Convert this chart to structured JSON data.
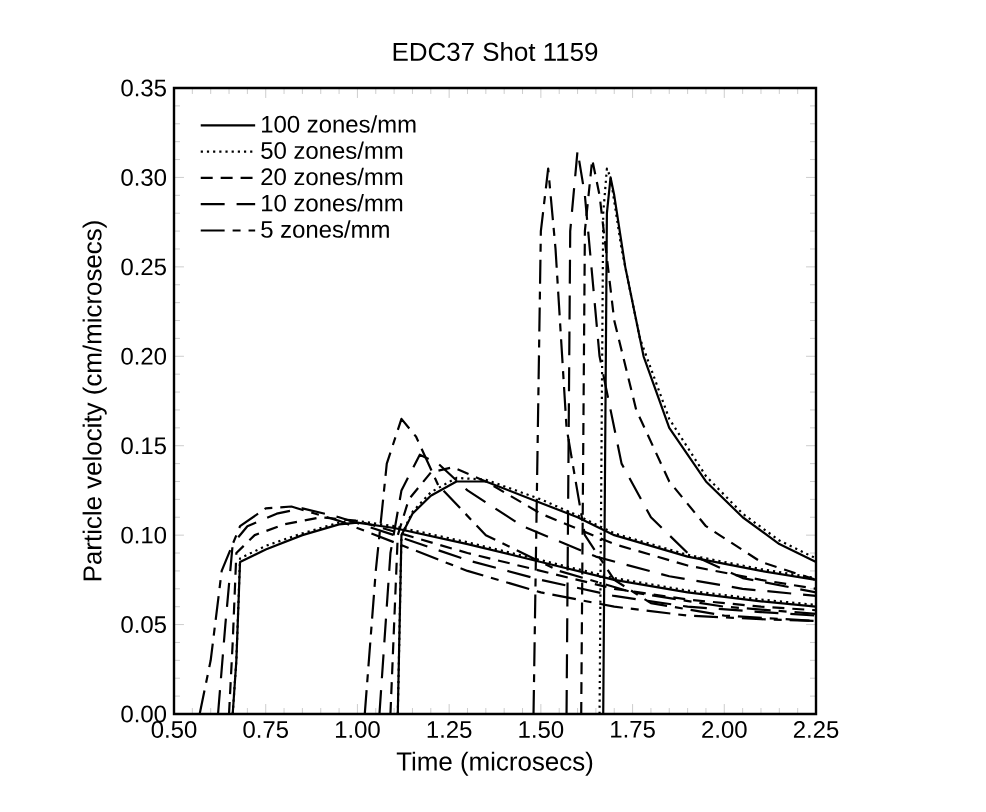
{
  "chart_data": {
    "type": "line",
    "title": "EDC37  Shot 1159",
    "xlabel": "Time (microsecs)",
    "ylabel": "Particle velocity (cm/microsecs)",
    "xlim": [
      0.5,
      2.25
    ],
    "ylim": [
      0,
      0.35
    ],
    "xticks": [
      {
        "value": 0.5,
        "label": "0.50"
      },
      {
        "value": 0.75,
        "label": "0.75"
      },
      {
        "value": 1.0,
        "label": "1.00"
      },
      {
        "value": 1.25,
        "label": "1.25"
      },
      {
        "value": 1.5,
        "label": "1.50"
      },
      {
        "value": 1.75,
        "label": "1.75"
      },
      {
        "value": 2.0,
        "label": "2.00"
      },
      {
        "value": 2.25,
        "label": "2.25"
      }
    ],
    "yticks": [
      {
        "value": 0,
        "label": "0.00"
      },
      {
        "value": 0.05,
        "label": "0.05"
      },
      {
        "value": 0.1,
        "label": "0.10"
      },
      {
        "value": 0.15,
        "label": "0.15"
      },
      {
        "value": 0.2,
        "label": "0.20"
      },
      {
        "value": 0.25,
        "label": "0.25"
      },
      {
        "value": 0.3,
        "label": "0.30"
      },
      {
        "value": 0.35,
        "label": "0.35"
      }
    ],
    "grid": false,
    "legend": "top left",
    "series": [
      {
        "name": "100 zones/mm",
        "color": "#000000",
        "line_style": "solid",
        "x": [
          0.66,
          0.67,
          0.68,
          0.75,
          0.85,
          0.95,
          1.0,
          1.1,
          1.3,
          1.5,
          1.7,
          1.9,
          2.1,
          2.25
        ],
        "values": [
          0,
          0.03,
          0.085,
          0.092,
          0.1,
          0.106,
          0.107,
          0.104,
          0.095,
          0.085,
          0.075,
          0.068,
          0.063,
          0.06
        ]
      },
      {
        "name": "50 zones/mm",
        "color": "#000000",
        "line_style": "dotted",
        "x": [
          0.66,
          0.67,
          0.68,
          0.75,
          0.85,
          0.95,
          1.0,
          1.1,
          1.3,
          1.5,
          1.7,
          1.9,
          2.1,
          2.25
        ],
        "values": [
          0,
          0.03,
          0.087,
          0.094,
          0.101,
          0.107,
          0.108,
          0.105,
          0.096,
          0.086,
          0.076,
          0.069,
          0.064,
          0.061
        ]
      },
      {
        "name": "20 zones/mm",
        "color": "#000000",
        "line_style": "dashed",
        "x": [
          0.65,
          0.66,
          0.67,
          0.72,
          0.8,
          0.9,
          1.0,
          1.1,
          1.3,
          1.5,
          1.7,
          1.9,
          2.1,
          2.25
        ],
        "values": [
          0,
          0.04,
          0.09,
          0.1,
          0.106,
          0.11,
          0.108,
          0.102,
          0.09,
          0.08,
          0.07,
          0.064,
          0.06,
          0.058
        ]
      },
      {
        "name": "10 zones/mm",
        "color": "#000000",
        "line_style": "dashed",
        "x": [
          0.62,
          0.64,
          0.66,
          0.7,
          0.78,
          0.85,
          0.95,
          1.1,
          1.3,
          1.5,
          1.7,
          1.9,
          2.1,
          2.25
        ],
        "values": [
          0,
          0.05,
          0.095,
          0.105,
          0.112,
          0.115,
          0.11,
          0.1,
          0.086,
          0.075,
          0.066,
          0.06,
          0.057,
          0.055
        ]
      },
      {
        "name": "5 zones/mm",
        "color": "#000000",
        "line_style": "dashed",
        "x": [
          0.57,
          0.6,
          0.63,
          0.68,
          0.75,
          0.82,
          0.95,
          1.1,
          1.3,
          1.5,
          1.7,
          1.9,
          2.1,
          2.25
        ],
        "values": [
          0,
          0.03,
          0.08,
          0.105,
          0.115,
          0.116,
          0.108,
          0.096,
          0.08,
          0.068,
          0.06,
          0.055,
          0.053,
          0.052
        ]
      },
      {
        "color": "#000000",
        "line_style": "solid",
        "x": [
          1.11,
          1.12,
          1.15,
          1.2,
          1.27,
          1.35,
          1.5,
          1.6,
          1.7,
          1.9,
          2.1,
          2.25
        ],
        "values": [
          0,
          0.1,
          0.112,
          0.122,
          0.13,
          0.13,
          0.118,
          0.11,
          0.1,
          0.088,
          0.08,
          0.075
        ]
      },
      {
        "color": "#000000",
        "line_style": "dotted",
        "x": [
          1.11,
          1.12,
          1.15,
          1.2,
          1.27,
          1.35,
          1.5,
          1.6,
          1.7,
          1.9,
          2.1,
          2.25
        ],
        "values": [
          0,
          0.1,
          0.113,
          0.124,
          0.132,
          0.131,
          0.12,
          0.111,
          0.101,
          0.089,
          0.081,
          0.076
        ]
      },
      {
        "color": "#000000",
        "line_style": "dashed",
        "x": [
          1.09,
          1.11,
          1.14,
          1.2,
          1.26,
          1.35,
          1.5,
          1.7,
          1.9,
          2.1,
          2.25
        ],
        "values": [
          0,
          0.1,
          0.12,
          0.135,
          0.138,
          0.13,
          0.112,
          0.095,
          0.083,
          0.075,
          0.07
        ]
      },
      {
        "color": "#000000",
        "line_style": "dashed",
        "x": [
          1.06,
          1.09,
          1.12,
          1.17,
          1.22,
          1.3,
          1.45,
          1.65,
          1.85,
          2.05,
          2.25
        ],
        "values": [
          0,
          0.09,
          0.125,
          0.145,
          0.14,
          0.125,
          0.105,
          0.088,
          0.077,
          0.07,
          0.066
        ]
      },
      {
        "color": "#000000",
        "line_style": "dashed",
        "x": [
          1.02,
          1.05,
          1.08,
          1.12,
          1.16,
          1.22,
          1.35,
          1.55,
          1.75,
          2.0,
          2.25
        ],
        "values": [
          0,
          0.08,
          0.14,
          0.165,
          0.155,
          0.128,
          0.1,
          0.08,
          0.068,
          0.06,
          0.056
        ]
      },
      {
        "color": "#000000",
        "line_style": "solid",
        "x": [
          1.67,
          1.68,
          1.69,
          1.7,
          1.73,
          1.78,
          1.85,
          1.95,
          2.05,
          2.15,
          2.25
        ],
        "values": [
          0,
          0.28,
          0.3,
          0.29,
          0.25,
          0.2,
          0.16,
          0.13,
          0.11,
          0.095,
          0.085
        ]
      },
      {
        "color": "#000000",
        "line_style": "dotted",
        "x": [
          1.66,
          1.67,
          1.68,
          1.69,
          1.72,
          1.77,
          1.85,
          1.95,
          2.05,
          2.15,
          2.25
        ],
        "values": [
          0,
          0.28,
          0.305,
          0.3,
          0.26,
          0.21,
          0.165,
          0.133,
          0.112,
          0.097,
          0.087
        ]
      },
      {
        "color": "#000000",
        "line_style": "dashed",
        "x": [
          1.61,
          1.62,
          1.64,
          1.66,
          1.7,
          1.76,
          1.85,
          1.95,
          2.1,
          2.25
        ],
        "values": [
          0,
          0.27,
          0.31,
          0.29,
          0.22,
          0.17,
          0.13,
          0.105,
          0.085,
          0.075
        ]
      },
      {
        "color": "#000000",
        "line_style": "dashed",
        "x": [
          1.57,
          1.58,
          1.6,
          1.62,
          1.66,
          1.72,
          1.8,
          1.9,
          2.05,
          2.25
        ],
        "values": [
          0,
          0.27,
          0.315,
          0.29,
          0.2,
          0.14,
          0.11,
          0.09,
          0.076,
          0.068
        ]
      },
      {
        "color": "#000000",
        "line_style": "dashed",
        "x": [
          1.48,
          1.5,
          1.52,
          1.54,
          1.57,
          1.62,
          1.7,
          1.8,
          2.0,
          2.25
        ],
        "values": [
          0,
          0.27,
          0.305,
          0.26,
          0.16,
          0.1,
          0.075,
          0.062,
          0.055,
          0.052
        ]
      }
    ]
  }
}
